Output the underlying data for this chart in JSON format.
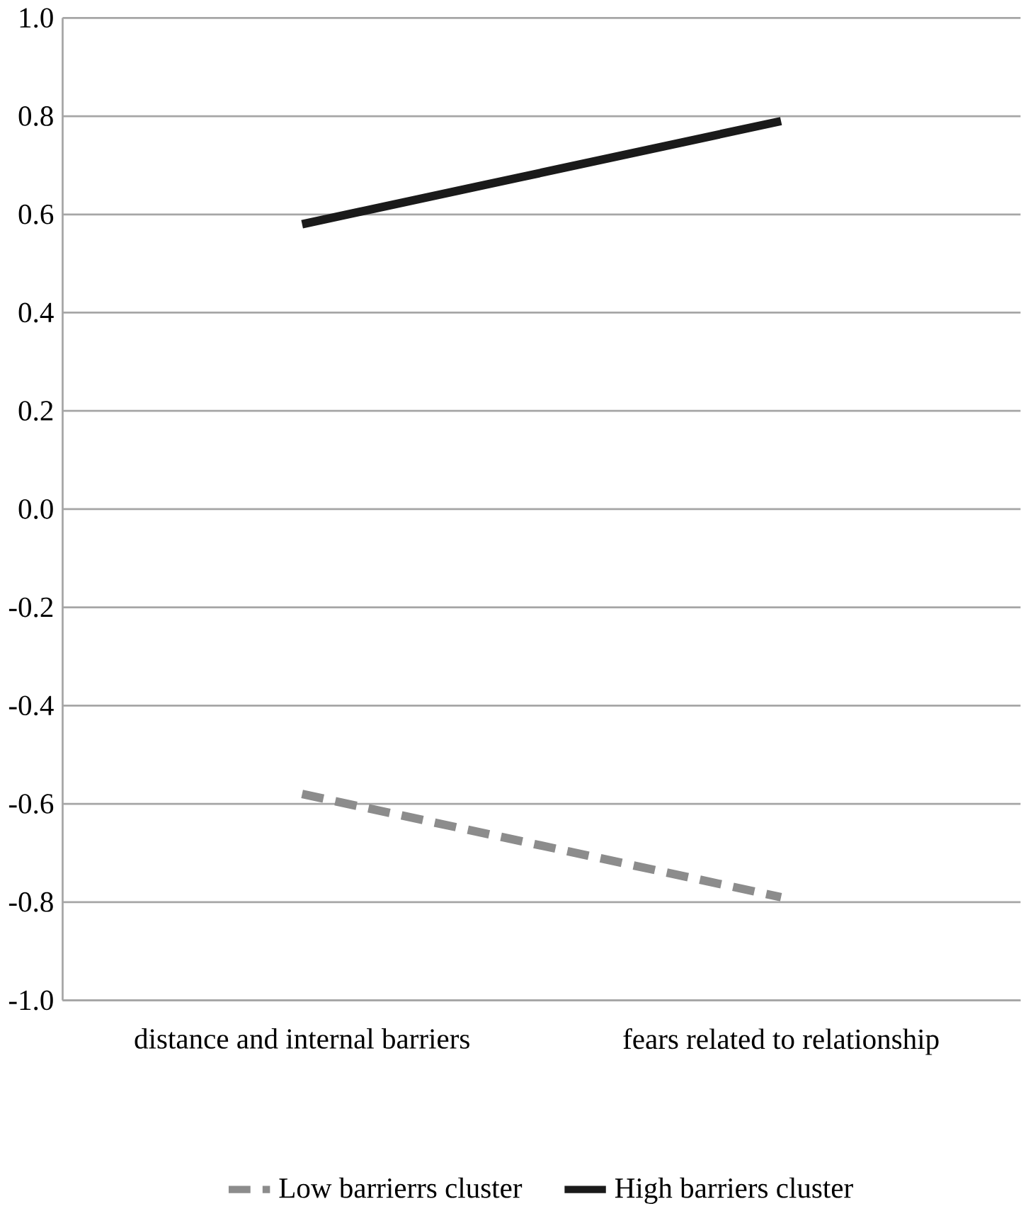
{
  "chart_data": {
    "type": "line",
    "categories": [
      "distance and internal barriers",
      "fears related to relationship"
    ],
    "series": [
      {
        "name": "Low barrierrs cluster",
        "color": "#8c8c8c",
        "values": [
          -0.58,
          -0.79
        ],
        "line_style": "dashed"
      },
      {
        "name": "High barriers cluster",
        "color": "#1a1a1a",
        "values": [
          0.58,
          0.79
        ],
        "line_style": "solid"
      }
    ],
    "ylim": [
      -1.0,
      1.0
    ],
    "yticks": [
      {
        "value": -1.0,
        "label": "-1.0"
      },
      {
        "value": -0.8,
        "label": "-0.8"
      },
      {
        "value": -0.6,
        "label": "-0.6"
      },
      {
        "value": -0.4,
        "label": "-0.4"
      },
      {
        "value": -0.2,
        "label": "-0.2"
      },
      {
        "value": 0.0,
        "label": "0.0"
      },
      {
        "value": 0.2,
        "label": "0.2"
      },
      {
        "value": 0.4,
        "label": "0.4"
      },
      {
        "value": 0.6,
        "label": "0.6"
      },
      {
        "value": 0.8,
        "label": "0.8"
      },
      {
        "value": 1.0,
        "label": "1.0"
      }
    ],
    "grid": "y",
    "legend": "bottom",
    "marker": "none"
  }
}
